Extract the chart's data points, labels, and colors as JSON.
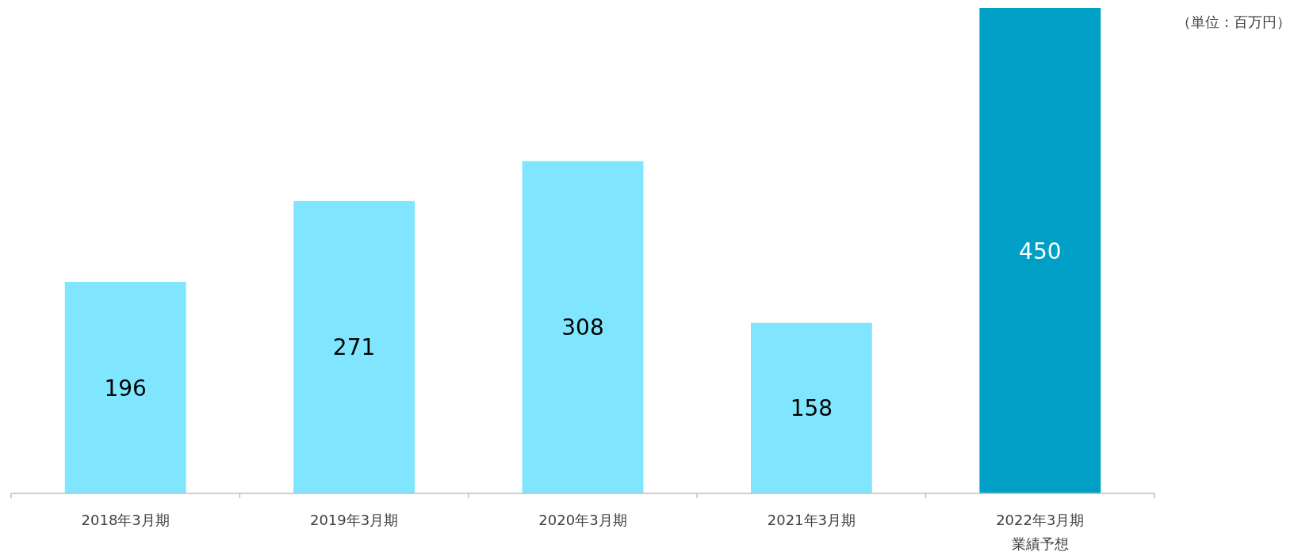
{
  "chart_data": {
    "type": "bar",
    "categories": [
      "2018年3月期",
      "2019年3月期",
      "2020年3月期",
      "2021年3月期",
      "2022年3月期業績予想"
    ],
    "values": [
      196,
      271,
      308,
      158,
      450
    ],
    "colors": [
      "#80e6ff",
      "#80e6ff",
      "#80e6ff",
      "#80e6ff",
      "#00a0c6"
    ],
    "data_labels": true,
    "annotations": [
      "（単位：百万円）"
    ]
  }
}
